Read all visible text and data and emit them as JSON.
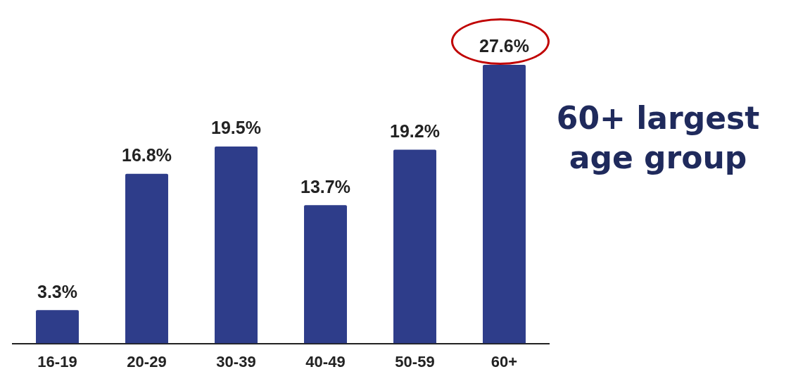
{
  "chart_data": {
    "type": "bar",
    "categories": [
      "16-19",
      "20-29",
      "30-39",
      "40-49",
      "50-59",
      "60+"
    ],
    "values": [
      3.3,
      16.8,
      19.5,
      13.7,
      19.2,
      27.6
    ],
    "value_labels": [
      "3.3%",
      "16.8%",
      "19.5%",
      "13.7%",
      "19.2%",
      "27.6%"
    ],
    "color": "#2e3d8a",
    "grid": false,
    "legend": false,
    "tick_labels": "x",
    "annotations": [
      "60+ largest age group"
    ]
  }
}
